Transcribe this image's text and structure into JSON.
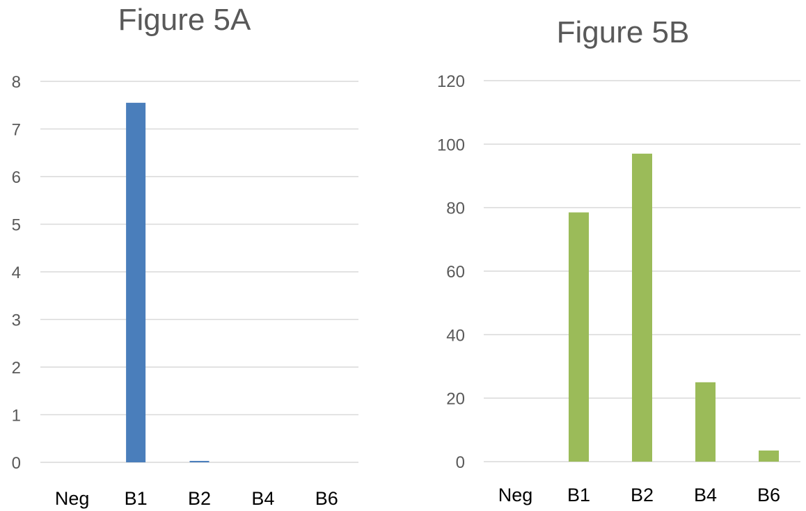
{
  "chart_data": [
    {
      "type": "bar",
      "title": "Figure 5A",
      "categories": [
        "Neg",
        "B1",
        "B2",
        "B4",
        "B6"
      ],
      "values": [
        0,
        7.55,
        0.03,
        0,
        0
      ],
      "ylim": [
        0,
        8
      ],
      "yticks": [
        0,
        1,
        2,
        3,
        4,
        5,
        6,
        7,
        8
      ],
      "color": "#4a7ebb",
      "grid": true
    },
    {
      "type": "bar",
      "title": "Figure 5B",
      "categories": [
        "Neg",
        "B1",
        "B2",
        "B4",
        "B6"
      ],
      "values": [
        0,
        78.5,
        97,
        25,
        3.5
      ],
      "ylim": [
        0,
        120
      ],
      "yticks": [
        0,
        20,
        40,
        60,
        80,
        100,
        120
      ],
      "color": "#9bbb59",
      "grid": true
    }
  ]
}
